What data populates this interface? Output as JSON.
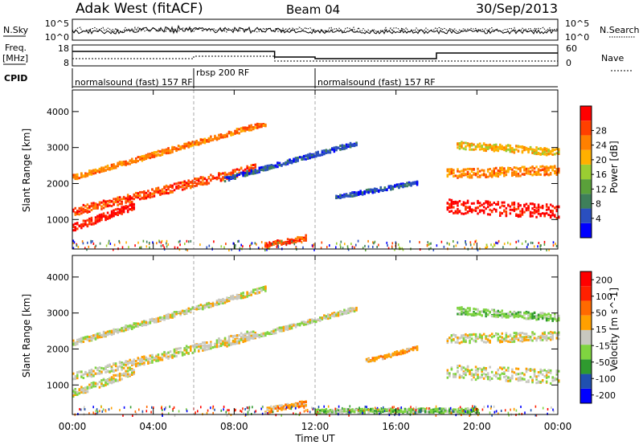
{
  "header": {
    "station": "Adak West (fitACF)",
    "beam": "Beam 04",
    "date": "30/Sep/2013"
  },
  "strip_labels": {
    "nsky": "N.Sky",
    "nsky_ticks": [
      "10^5",
      "10^0"
    ],
    "nsearch": "N.Search",
    "nsearch_ticks": [
      "10^5",
      "10^0"
    ],
    "freq_top": "Freq.",
    "freq_unit": "[MHz]",
    "freq_ticks": [
      "18",
      "8"
    ],
    "nave": "Nave",
    "nave_ticks": [
      "60",
      "0"
    ],
    "cpid": "CPID"
  },
  "cpid_segments": [
    {
      "label": "normalsound (fast) 157 RF",
      "start_hour": 0,
      "end_hour": 6
    },
    {
      "label": "rbsp 200 RF",
      "start_hour": 6,
      "end_hour": 12
    },
    {
      "label": "normalsound (fast) 157 RF",
      "start_hour": 12,
      "end_hour": 24
    }
  ],
  "chart_data": [
    {
      "type": "heatmap",
      "panel": "power",
      "ylabel": "Slant Range [km]",
      "xlabel": "Time UT",
      "x_ticks": [
        "00:00",
        "04:00",
        "08:00",
        "12:00",
        "16:00",
        "20:00",
        "00:00"
      ],
      "y_ticks": [
        1000,
        2000,
        3000,
        4000
      ],
      "xlim_hours": [
        0,
        24
      ],
      "ylim_km": [
        180,
        4600
      ],
      "colorbar": {
        "label": "Power [dB]",
        "ticks": [
          "4",
          "8",
          "12",
          "16",
          "20",
          "24",
          "28"
        ],
        "colors": [
          "#0000ff",
          "#2a4fbf",
          "#3e7f5a",
          "#5aa13a",
          "#9acd32",
          "#ffb000",
          "#ff8000",
          "#ff4000",
          "#ff0000"
        ]
      },
      "bands": [
        {
          "t0": 0.0,
          "t1": 9.5,
          "r0": 2200,
          "r1": 3700,
          "thick": 140,
          "level": 6
        },
        {
          "t0": 0.0,
          "t1": 9.0,
          "r0": 1250,
          "r1": 2450,
          "thick": 230,
          "level": 7
        },
        {
          "t0": 0.0,
          "t1": 3.0,
          "r0": 800,
          "r1": 1400,
          "thick": 200,
          "level": 8
        },
        {
          "t0": 7.5,
          "t1": 14.0,
          "r0": 2150,
          "r1": 3150,
          "thick": 120,
          "level": 1
        },
        {
          "t0": 13.0,
          "t1": 17.0,
          "r0": 1650,
          "r1": 2050,
          "thick": 110,
          "level": 1
        },
        {
          "t0": 18.5,
          "t1": 24.0,
          "r0": 1400,
          "r1": 1250,
          "thick": 380,
          "level": 8
        },
        {
          "t0": 18.5,
          "t1": 24.0,
          "r0": 2300,
          "r1": 2400,
          "thick": 250,
          "level": 6
        },
        {
          "t0": 19.0,
          "t1": 24.0,
          "r0": 3100,
          "r1": 2900,
          "thick": 200,
          "level": 5
        },
        {
          "t0": 9.5,
          "t1": 11.5,
          "r0": 320,
          "r1": 520,
          "thick": 150,
          "level": 7
        }
      ]
    },
    {
      "type": "heatmap",
      "panel": "velocity",
      "ylabel": "Slant Range [km]",
      "xlabel": "Time UT",
      "x_ticks": [
        "00:00",
        "04:00",
        "08:00",
        "12:00",
        "16:00",
        "20:00",
        "00:00"
      ],
      "y_ticks": [
        1000,
        2000,
        3000,
        4000
      ],
      "xlim_hours": [
        0,
        24
      ],
      "ylim_km": [
        180,
        4600
      ],
      "colorbar": {
        "label": "Velocity [m s^-1]",
        "ticks": [
          "200",
          "100",
          "50",
          "15",
          "-15",
          "-50",
          "-100",
          "-200"
        ],
        "colors": [
          "#0000ff",
          "#2050b0",
          "#2f9a2f",
          "#7fd440",
          "#c8c8c0",
          "#ffa000",
          "#ff6a00",
          "#ff2000",
          "#ff0000"
        ]
      },
      "bands": [
        {
          "t0": 0.0,
          "t1": 9.5,
          "r0": 2200,
          "r1": 3700,
          "thick": 140,
          "level": 4
        },
        {
          "t0": 0.0,
          "t1": 9.0,
          "r0": 1250,
          "r1": 2450,
          "thick": 230,
          "level": 4
        },
        {
          "t0": 0.0,
          "t1": 3.0,
          "r0": 800,
          "r1": 1400,
          "thick": 200,
          "level": 4
        },
        {
          "t0": 7.5,
          "t1": 14.0,
          "r0": 2150,
          "r1": 3150,
          "thick": 120,
          "level": 4
        },
        {
          "t0": 14.5,
          "t1": 17.0,
          "r0": 1700,
          "r1": 2050,
          "thick": 110,
          "level": 5
        },
        {
          "t0": 18.5,
          "t1": 24.0,
          "r0": 1400,
          "r1": 1250,
          "thick": 380,
          "level": 4
        },
        {
          "t0": 18.5,
          "t1": 24.0,
          "r0": 2300,
          "r1": 2400,
          "thick": 250,
          "level": 4
        },
        {
          "t0": 19.0,
          "t1": 24.0,
          "r0": 3100,
          "r1": 2900,
          "thick": 200,
          "level": 3
        },
        {
          "t0": 9.5,
          "t1": 11.5,
          "r0": 320,
          "r1": 520,
          "thick": 150,
          "level": 5
        },
        {
          "t0": 12.0,
          "t1": 20.0,
          "r0": 300,
          "r1": 320,
          "thick": 120,
          "level": 3
        }
      ]
    }
  ]
}
